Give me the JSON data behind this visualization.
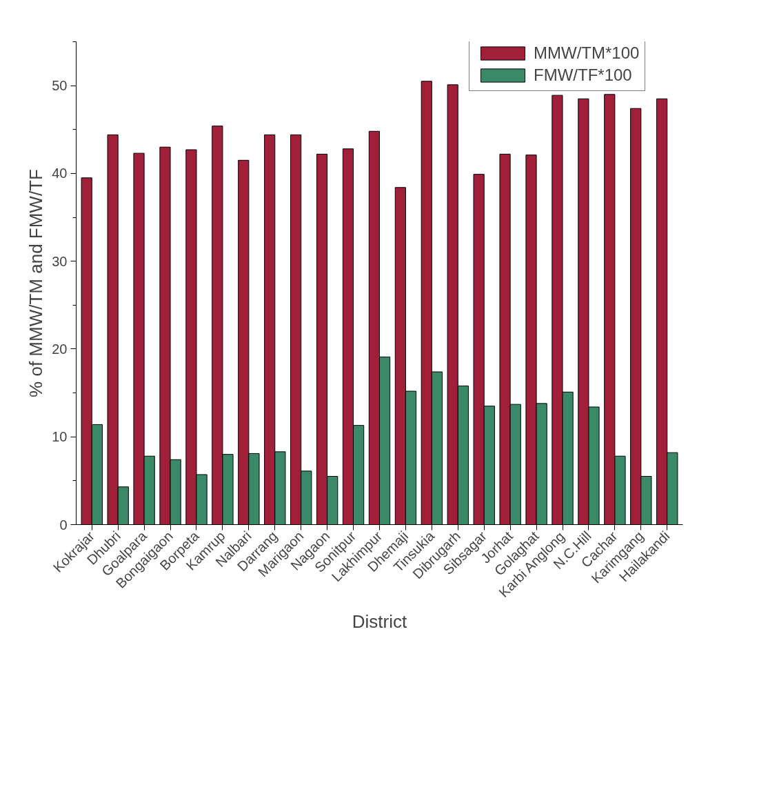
{
  "chart_data": {
    "type": "bar",
    "xlabel": "District",
    "ylabel": "% of MMW/TM and FMW/TF",
    "categories": [
      "Kokrajar",
      "Dhubri",
      "Goalpara",
      "Bongaigaon",
      "Borpeta",
      "Kamrup",
      "Nalbari",
      "Darrang",
      "Marigaon",
      "Nagaon",
      "Sonitpur",
      "Lakhimpur",
      "Dhemaji",
      "Tinsukia",
      "Dibrugarh",
      "Sibsagar",
      "Jorhat",
      "Golaghat",
      "Karbi Anglong",
      "N.C.Hill",
      "Cachar",
      "Karimgang",
      "Hailakandi"
    ],
    "series": [
      {
        "name": "MMW/TM*100",
        "color": "#a0203a",
        "values": [
          39.5,
          44.4,
          42.3,
          43.0,
          42.7,
          45.4,
          41.5,
          44.4,
          44.4,
          42.2,
          42.8,
          44.8,
          38.4,
          50.5,
          50.1,
          39.9,
          42.2,
          42.1,
          48.9,
          48.5,
          49.0,
          47.4,
          48.5
        ]
      },
      {
        "name": "FMW/TF*100",
        "color": "#3a8a6a",
        "values": [
          11.4,
          4.3,
          7.8,
          7.4,
          5.7,
          8.0,
          8.1,
          8.3,
          6.1,
          5.5,
          11.3,
          19.1,
          15.2,
          17.4,
          15.8,
          13.5,
          13.7,
          13.8,
          15.1,
          13.4,
          7.8,
          5.5,
          8.2
        ]
      }
    ],
    "ylim": [
      0,
      55
    ],
    "yticks": [
      0,
      10,
      20,
      30,
      40,
      50
    ],
    "grid": false,
    "legend": "top right"
  }
}
